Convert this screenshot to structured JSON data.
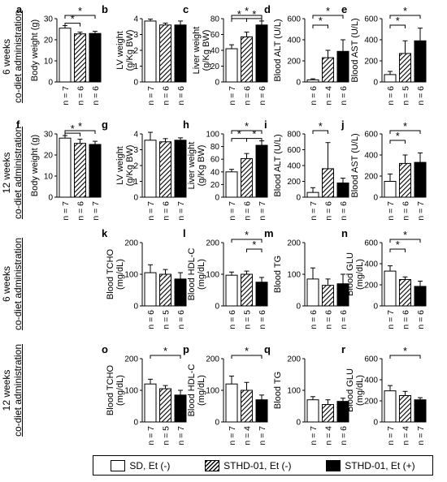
{
  "legend": {
    "sd": "SD, Et (-)",
    "sthd_minus": "STHD-01, Et (-)",
    "sthd_plus": "STHD-01, Et (+)"
  },
  "row_labels": [
    {
      "line1": "6 weeks",
      "line2": "co-diet administration"
    },
    {
      "line1": "12 weeks",
      "line2": "co-diet administration"
    },
    {
      "line1": "6 weeks",
      "line2": "co-diet administration"
    },
    {
      "line1": "12 weeks",
      "line2": "co-diet administration"
    }
  ],
  "colors": {
    "bar_open": "#ffffff",
    "bar_solid": "#000000",
    "stroke": "#000000"
  },
  "chart_data": [
    {
      "panel": "a",
      "type": "bar",
      "ylabel": [
        "Body weight (g)"
      ],
      "ylim": [
        0,
        30
      ],
      "yticks": [
        0,
        10,
        20,
        30
      ],
      "groups": [
        "SD, Et (-)",
        "STHD-01, Et (-)",
        "STHD-01, Et (+)"
      ],
      "values": [
        25.5,
        22.8,
        23
      ],
      "errors": [
        1.2,
        0.8,
        1.0
      ],
      "n_labels": [
        "n = 7",
        "n = 6",
        "n = 6"
      ],
      "significance": [
        {
          "from": 0,
          "to": 2,
          "label": "*"
        },
        {
          "from": 0,
          "to": 1,
          "label": "*"
        }
      ]
    },
    {
      "panel": "b",
      "type": "bar",
      "ylabel": [
        "LV weight",
        "(g/Kg BW)"
      ],
      "ylim": [
        0,
        4
      ],
      "yticks": [
        0,
        1,
        2,
        3,
        4
      ],
      "groups": [
        "SD, Et (-)",
        "STHD-01, Et (-)",
        "STHD-01, Et (+)"
      ],
      "values": [
        3.85,
        3.6,
        3.6
      ],
      "errors": [
        0.12,
        0.12,
        0.25
      ],
      "n_labels": [
        "n = 7",
        "n = 6",
        "n = 6"
      ],
      "significance": []
    },
    {
      "panel": "c",
      "type": "bar",
      "ylabel": [
        "Liver weight",
        "(g/Kg BW)"
      ],
      "ylim": [
        0,
        80
      ],
      "yticks": [
        0,
        20,
        40,
        60,
        80
      ],
      "groups": [
        "SD, Et (-)",
        "STHD-01, Et (-)",
        "STHD-01, Et (+)"
      ],
      "values": [
        42,
        57,
        72
      ],
      "errors": [
        5,
        6,
        5
      ],
      "n_labels": [
        "n = 7",
        "n = 6",
        "n = 6"
      ],
      "significance": [
        {
          "from": 0,
          "to": 2,
          "label": "*"
        },
        {
          "from": 0,
          "to": 1,
          "label": "*"
        },
        {
          "from": 1,
          "to": 2,
          "label": "*"
        }
      ]
    },
    {
      "panel": "d",
      "type": "bar",
      "ylabel": [
        "Blood ALT (U/L)"
      ],
      "ylim": [
        0,
        600
      ],
      "yticks": [
        0,
        200,
        400,
        600
      ],
      "groups": [
        "SD, Et (-)",
        "STHD-01, Et (-)",
        "STHD-01, Et (+)"
      ],
      "values": [
        20,
        230,
        290
      ],
      "errors": [
        10,
        70,
        110
      ],
      "n_labels": [
        "n = 6",
        "n = 4",
        "n = 6"
      ],
      "significance": [
        {
          "from": 0,
          "to": 2,
          "label": "*"
        },
        {
          "from": 0,
          "to": 1,
          "label": "*"
        }
      ]
    },
    {
      "panel": "e",
      "type": "bar",
      "ylabel": [
        "Blood AST (U/L)"
      ],
      "ylim": [
        0,
        600
      ],
      "yticks": [
        0,
        200,
        400,
        600
      ],
      "groups": [
        "SD, Et (-)",
        "STHD-01, Et (-)",
        "STHD-01, Et (+)"
      ],
      "values": [
        70,
        270,
        390
      ],
      "errors": [
        30,
        120,
        120
      ],
      "n_labels": [
        "n = 6",
        "n = 5",
        "n = 6"
      ],
      "significance": [
        {
          "from": 0,
          "to": 2,
          "label": "*"
        },
        {
          "from": 0,
          "to": 1,
          "label": "*"
        }
      ]
    },
    {
      "panel": "f",
      "type": "bar",
      "ylabel": [
        "Body weight (g)"
      ],
      "ylim": [
        0,
        30
      ],
      "yticks": [
        0,
        10,
        20,
        30
      ],
      "groups": [
        "SD, Et (-)",
        "STHD-01, Et (-)",
        "STHD-01, Et (+)"
      ],
      "values": [
        28,
        25.5,
        25
      ],
      "errors": [
        1.2,
        2.0,
        1.5
      ],
      "n_labels": [
        "n = 7",
        "n = 6",
        "n = 7"
      ],
      "significance": [
        {
          "from": 0,
          "to": 2,
          "label": "*"
        },
        {
          "from": 0,
          "to": 1,
          "label": "*"
        }
      ]
    },
    {
      "panel": "g",
      "type": "bar",
      "ylabel": [
        "LV weight",
        "(g/Kg BW)"
      ],
      "ylim": [
        0,
        4
      ],
      "yticks": [
        0,
        1,
        2,
        3,
        4
      ],
      "groups": [
        "SD, Et (-)",
        "STHD-01, Et (-)",
        "STHD-01, Et (+)"
      ],
      "values": [
        3.6,
        3.5,
        3.6
      ],
      "errors": [
        0.5,
        0.2,
        0.15
      ],
      "n_labels": [
        "n = 7",
        "n = 6",
        "n = 7"
      ],
      "significance": []
    },
    {
      "panel": "h",
      "type": "bar",
      "ylabel": [
        "Liver weight",
        "(g/Kg BW)"
      ],
      "ylim": [
        0,
        100
      ],
      "yticks": [
        0,
        20,
        40,
        60,
        80,
        100
      ],
      "groups": [
        "SD, Et (-)",
        "STHD-01, Et (-)",
        "STHD-01, Et (+)"
      ],
      "values": [
        40,
        61,
        82
      ],
      "errors": [
        4,
        8,
        7
      ],
      "n_labels": [
        "n = 7",
        "n = 6",
        "n = 7"
      ],
      "significance": [
        {
          "from": 0,
          "to": 2,
          "label": "*"
        },
        {
          "from": 0,
          "to": 1,
          "label": "*"
        },
        {
          "from": 1,
          "to": 2,
          "label": "*"
        }
      ]
    },
    {
      "panel": "i",
      "type": "bar",
      "ylabel": [
        "Blood ALT (U/L)"
      ],
      "ylim": [
        0,
        800
      ],
      "yticks": [
        0,
        200,
        400,
        600,
        800
      ],
      "groups": [
        "SD, Et (-)",
        "STHD-01, Et (-)",
        "STHD-01, Et (+)"
      ],
      "values": [
        60,
        360,
        180
      ],
      "errors": [
        60,
        330,
        60
      ],
      "n_labels": [
        "n = 7",
        "n = 6",
        "n = 6"
      ],
      "significance": [
        {
          "from": 0,
          "to": 1,
          "label": "*"
        }
      ]
    },
    {
      "panel": "j",
      "type": "bar",
      "ylabel": [
        "Blood AST (U/L)"
      ],
      "ylim": [
        0,
        600
      ],
      "yticks": [
        0,
        200,
        400,
        600
      ],
      "groups": [
        "SD, Et (-)",
        "STHD-01, Et (-)",
        "STHD-01, Et (+)"
      ],
      "values": [
        150,
        320,
        330
      ],
      "errors": [
        70,
        80,
        90
      ],
      "n_labels": [
        "n = 7",
        "n = 6",
        "n = 7"
      ],
      "significance": [
        {
          "from": 0,
          "to": 2,
          "label": "*"
        },
        {
          "from": 0,
          "to": 1,
          "label": "*"
        }
      ]
    },
    {
      "panel": "k",
      "type": "bar",
      "ylabel": [
        "Blood TCHO",
        "(mg/dL)"
      ],
      "ylim": [
        0,
        200
      ],
      "yticks": [
        0,
        100,
        200
      ],
      "groups": [
        "SD, Et (-)",
        "STHD-01, Et (-)",
        "STHD-01, Et (+)"
      ],
      "values": [
        105,
        100,
        85
      ],
      "errors": [
        25,
        15,
        20
      ],
      "n_labels": [
        "n = 6",
        "n = 5",
        "n = 6"
      ],
      "significance": []
    },
    {
      "panel": "l",
      "type": "bar",
      "ylabel": [
        "Blood HDL-C",
        "(mg/dL)"
      ],
      "ylim": [
        0,
        200
      ],
      "yticks": [
        0,
        100,
        200
      ],
      "groups": [
        "SD, Et (-)",
        "STHD-01, Et (-)",
        "STHD-01, Et (+)"
      ],
      "values": [
        97,
        100,
        75
      ],
      "errors": [
        10,
        10,
        15
      ],
      "n_labels": [
        "n = 6",
        "n = 5",
        "n = 6"
      ],
      "significance": [
        {
          "from": 0,
          "to": 2,
          "label": "*"
        },
        {
          "from": 1,
          "to": 2,
          "label": "*"
        }
      ]
    },
    {
      "panel": "m",
      "type": "bar",
      "ylabel": [
        "Blood TG"
      ],
      "ylim": [
        0,
        200
      ],
      "yticks": [
        0,
        100,
        200
      ],
      "groups": [
        "SD, Et (-)",
        "STHD-01, Et (-)",
        "STHD-01, Et (+)"
      ],
      "values": [
        85,
        65,
        70
      ],
      "errors": [
        35,
        20,
        30
      ],
      "n_labels": [
        "n = 6",
        "n = 6",
        "n = 6"
      ],
      "significance": []
    },
    {
      "panel": "n",
      "type": "bar",
      "ylabel": [
        "Blood GLU",
        "(mg/dL)"
      ],
      "ylim": [
        0,
        600
      ],
      "yticks": [
        0,
        200,
        400,
        600
      ],
      "groups": [
        "SD, Et (-)",
        "STHD-01, Et (-)",
        "STHD-01, Et (+)"
      ],
      "values": [
        330,
        250,
        185
      ],
      "errors": [
        50,
        25,
        50
      ],
      "n_labels": [
        "n = 7",
        "n = 6",
        "n = 6"
      ],
      "significance": [
        {
          "from": 0,
          "to": 2,
          "label": "*"
        },
        {
          "from": 0,
          "to": 1,
          "label": "*"
        }
      ]
    },
    {
      "panel": "o",
      "type": "bar",
      "ylabel": [
        "Blood TCHO",
        "(mg/dL)"
      ],
      "ylim": [
        0,
        200
      ],
      "yticks": [
        0,
        100,
        200
      ],
      "groups": [
        "SD, Et (-)",
        "STHD-01, Et (-)",
        "STHD-01, Et (+)"
      ],
      "values": [
        120,
        105,
        85
      ],
      "errors": [
        15,
        10,
        15
      ],
      "n_labels": [
        "n = 7",
        "n = 5",
        "n = 7"
      ],
      "significance": [
        {
          "from": 0,
          "to": 2,
          "label": "*"
        }
      ]
    },
    {
      "panel": "p",
      "type": "bar",
      "ylabel": [
        "Blood HDL-C",
        "(mg/dL)"
      ],
      "ylim": [
        0,
        200
      ],
      "yticks": [
        0,
        100,
        200
      ],
      "groups": [
        "SD, Et (-)",
        "STHD-01, Et (-)",
        "STHD-01, Et (+)"
      ],
      "values": [
        120,
        100,
        70
      ],
      "errors": [
        25,
        25,
        15
      ],
      "n_labels": [
        "n = 7",
        "n = 4",
        "n = 7"
      ],
      "significance": [
        {
          "from": 0,
          "to": 2,
          "label": "*"
        }
      ]
    },
    {
      "panel": "q",
      "type": "bar",
      "ylabel": [
        "Blood TG"
      ],
      "ylim": [
        0,
        200
      ],
      "yticks": [
        0,
        100,
        200
      ],
      "groups": [
        "SD, Et (-)",
        "STHD-01, Et (-)",
        "STHD-01, Et (+)"
      ],
      "values": [
        70,
        55,
        65
      ],
      "errors": [
        10,
        15,
        10
      ],
      "n_labels": [
        "n = 7",
        "n = 4",
        "n = 6"
      ],
      "significance": []
    },
    {
      "panel": "r",
      "type": "bar",
      "ylabel": [
        "Blood GLU",
        "(mg/dL)"
      ],
      "ylim": [
        0,
        600
      ],
      "yticks": [
        0,
        200,
        400,
        600
      ],
      "groups": [
        "SD, Et (-)",
        "STHD-01, Et (-)",
        "STHD-01, Et (+)"
      ],
      "values": [
        295,
        250,
        210
      ],
      "errors": [
        50,
        40,
        20
      ],
      "n_labels": [
        "n = 7",
        "n = 4",
        "n = 7"
      ],
      "significance": [
        {
          "from": 0,
          "to": 2,
          "label": "*"
        }
      ]
    }
  ]
}
